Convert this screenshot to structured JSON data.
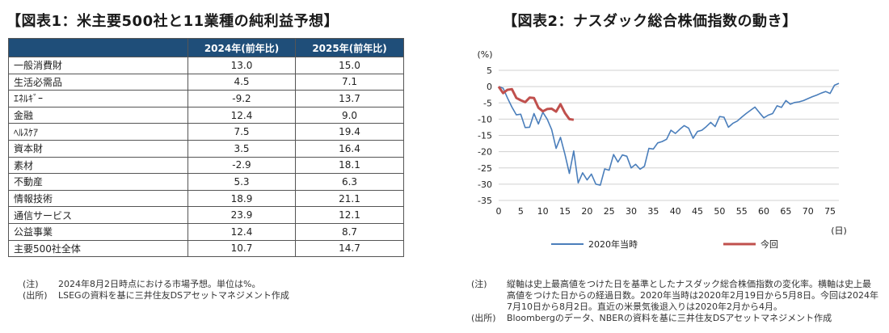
{
  "left": {
    "title": "【図表1：米主要500社と11業種の純利益予想】",
    "table": {
      "headers": [
        "",
        "2024年(前年比)",
        "2025年(前年比)"
      ],
      "rows": [
        {
          "sector": "一般消費財",
          "y2024": "13.0",
          "y2025": "15.0"
        },
        {
          "sector": "生活必需品",
          "y2024": "4.5",
          "y2025": "7.1"
        },
        {
          "sector": "ｴﾈﾙｷﾞｰ",
          "y2024": "-9.2",
          "y2025": "13.7"
        },
        {
          "sector": "金融",
          "y2024": "12.4",
          "y2025": "9.0"
        },
        {
          "sector": "ﾍﾙｽｹｱ",
          "y2024": "7.5",
          "y2025": "19.4"
        },
        {
          "sector": "資本財",
          "y2024": "3.5",
          "y2025": "16.4"
        },
        {
          "sector": "素材",
          "y2024": "-2.9",
          "y2025": "18.1"
        },
        {
          "sector": "不動産",
          "y2024": "5.3",
          "y2025": "6.3"
        },
        {
          "sector": "情報技術",
          "y2024": "18.9",
          "y2025": "21.1"
        },
        {
          "sector": "通信サービス",
          "y2024": "23.9",
          "y2025": "12.1"
        },
        {
          "sector": "公益事業",
          "y2024": "12.4",
          "y2025": "8.7"
        },
        {
          "sector": "主要500社全体",
          "y2024": "10.7",
          "y2025": "14.7"
        }
      ]
    },
    "notes": [
      {
        "label": "(注)",
        "text": "2024年8月2日時点における市場予想。単位は%。"
      },
      {
        "label": "(出所)",
        "text": "LSEGの資料を基に三井住友DSアセットマネジメント作成"
      }
    ]
  },
  "right": {
    "title": "【図表2：ナスダック総合株価指数の動き】",
    "notes": [
      {
        "label": "(注)",
        "text": "縦軸は史上最高値をつけた日を基準としたナスダック総合株価指数の変化率。横軸は史上最高値をつけた日からの経過日数。2020年当時は2020年2月19日から5月8日。今回は2024年7月10日から8月2日。直近の米景気後退入りは2020年2月から4月。"
      },
      {
        "label": "(出所)",
        "text": "Bloombergのデータ、NBERの資料を基に三井住友DSアセットマネジメント作成"
      }
    ]
  },
  "chart_data": {
    "type": "line",
    "title": "【図表2：ナスダック総合株価指数の動き】",
    "ylabel": "(%)",
    "xlabel": "(日)",
    "xlim": [
      0,
      77
    ],
    "ylim": [
      -35,
      5
    ],
    "xticks": [
      0,
      5,
      10,
      15,
      20,
      25,
      30,
      35,
      40,
      45,
      50,
      55,
      60,
      65,
      70,
      75
    ],
    "yticks": [
      5,
      0,
      -5,
      -10,
      -15,
      -20,
      -25,
      -30,
      -35
    ],
    "grid": "horizontal",
    "legend_position": "bottom",
    "series": [
      {
        "name": "2020年当時",
        "color": "#4a7ebb",
        "x": [
          0,
          1,
          2,
          3,
          4,
          5,
          6,
          7,
          8,
          9,
          10,
          11,
          12,
          13,
          14,
          15,
          16,
          17,
          18,
          19,
          20,
          21,
          22,
          23,
          24,
          25,
          26,
          27,
          28,
          29,
          30,
          31,
          32,
          33,
          34,
          35,
          36,
          37,
          38,
          39,
          40,
          41,
          42,
          43,
          44,
          45,
          46,
          47,
          48,
          49,
          50,
          51,
          52,
          53,
          54,
          55,
          56,
          57,
          58,
          59,
          60,
          61,
          62,
          63,
          64,
          65,
          66,
          67,
          68,
          69,
          70,
          71,
          72,
          73,
          74,
          75,
          76,
          77
        ],
        "y": [
          0,
          -0.5,
          -3.5,
          -6.3,
          -8.7,
          -8.5,
          -12.6,
          -12.5,
          -8.3,
          -11.5,
          -7.9,
          -10.0,
          -13.2,
          -19.0,
          -15.6,
          -20.8,
          -26.7,
          -19.8,
          -29.6,
          -26.5,
          -28.7,
          -26.9,
          -30.0,
          -30.3,
          -25.3,
          -25.7,
          -20.9,
          -23.2,
          -21.0,
          -21.4,
          -25.0,
          -23.9,
          -25.4,
          -24.5,
          -19.0,
          -19.2,
          -17.3,
          -16.9,
          -16.2,
          -13.4,
          -14.4,
          -13.1,
          -12.0,
          -12.8,
          -15.9,
          -13.8,
          -13.4,
          -12.3,
          -11.0,
          -12.3,
          -9.2,
          -9.4,
          -12.5,
          -11.3,
          -10.6,
          -9.4,
          -8.3,
          -7.3,
          -6.3,
          -8.0,
          -9.6,
          -8.8,
          -8.3,
          -5.9,
          -6.4,
          -4.3,
          -5.4,
          -4.9,
          -4.7,
          -4.3,
          -3.7,
          -3.1,
          -2.6,
          -2.0,
          -1.5,
          -2.1,
          0.4,
          1.0
        ]
      },
      {
        "name": "今回",
        "color": "#c0504d",
        "x": [
          0,
          1,
          2,
          3,
          4,
          5,
          6,
          7,
          8,
          9,
          10,
          11,
          12,
          13,
          14,
          15,
          16,
          17
        ],
        "y": [
          0,
          -2.0,
          -1.0,
          -0.8,
          -3.5,
          -4.2,
          -4.8,
          -3.4,
          -3.5,
          -6.5,
          -7.6,
          -6.9,
          -6.8,
          -7.7,
          -5.4,
          -8.1,
          -10.0,
          -10.2
        ]
      }
    ]
  }
}
